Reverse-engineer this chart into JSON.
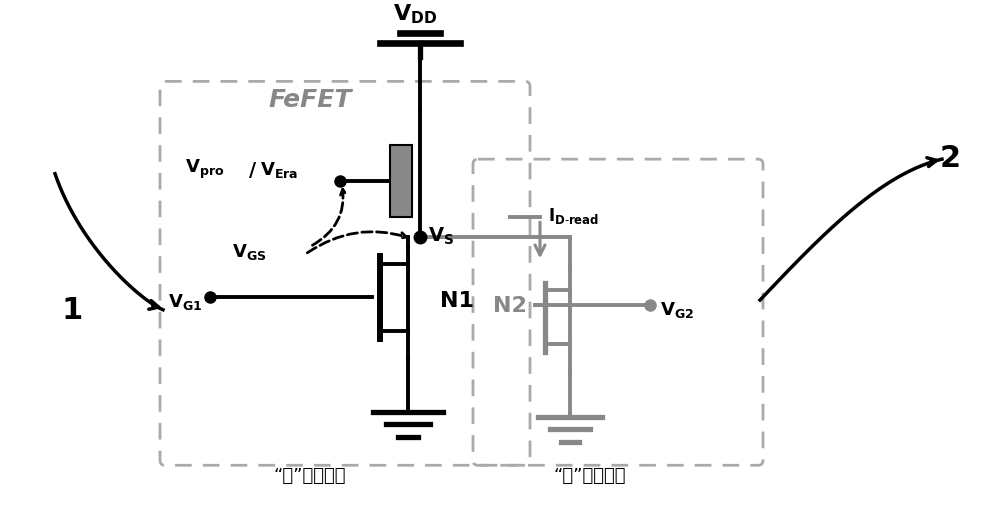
{
  "bg_color": "#ffffff",
  "black": "#000000",
  "gray": "#888888",
  "write_label": "“写”操作通路",
  "read_label": "“读”操作通路",
  "label1": "1",
  "label2": "2",
  "figw": 10.0,
  "figh": 5.1
}
